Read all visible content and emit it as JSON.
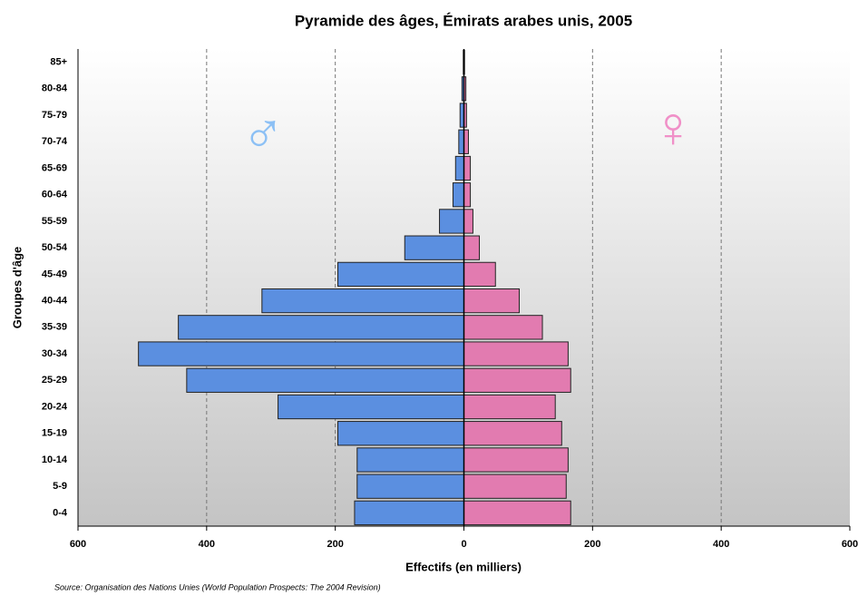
{
  "chart_data": {
    "type": "pyramid",
    "title": "Pyramide des âges, Émirats arabes unis, 2005",
    "xlabel": "Effectifs (en milliers)",
    "ylabel": "Groupes d'âge",
    "source": "Source: Organisation des Nations Unies (World Population Prospects: The 2004 Revision)",
    "male_symbol": "♂",
    "female_symbol": "♀",
    "categories": [
      "0-4",
      "5-9",
      "10-14",
      "15-19",
      "20-24",
      "25-29",
      "30-34",
      "35-39",
      "40-44",
      "45-49",
      "50-54",
      "55-59",
      "60-64",
      "65-69",
      "70-74",
      "75-79",
      "80-84",
      "85+"
    ],
    "series": [
      {
        "color": "#5b8fe0",
        "values": [
          -170,
          -166,
          -166,
          -196,
          -289,
          -431,
          -506,
          -444,
          -314,
          -196,
          -92,
          -38,
          -17,
          -13,
          -8,
          -6,
          -3,
          -1
        ]
      },
      {
        "color": "#e27bb0",
        "values": [
          166,
          159,
          162,
          152,
          142,
          166,
          162,
          122,
          86,
          49,
          24,
          14,
          10,
          10,
          7,
          4,
          3,
          1
        ]
      }
    ],
    "xlim": [
      -600,
      600
    ],
    "xticks": [
      {
        "value": -600,
        "label": "600"
      },
      {
        "value": -400,
        "label": "400"
      },
      {
        "value": -200,
        "label": "200"
      },
      0,
      200,
      400,
      600
    ],
    "grid": true
  }
}
